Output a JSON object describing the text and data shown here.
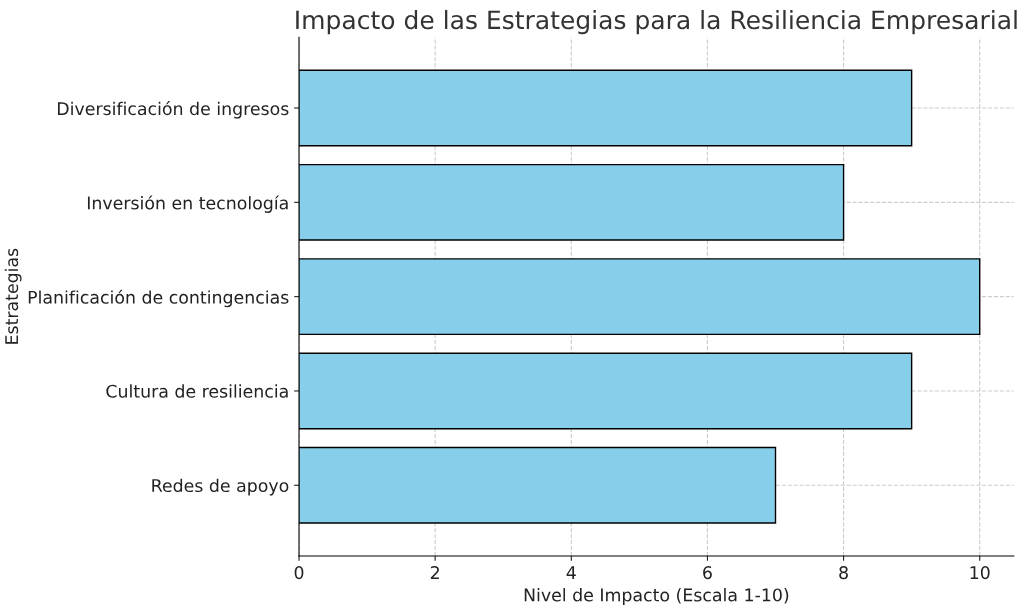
{
  "chart_data": {
    "type": "bar",
    "orientation": "horizontal",
    "title": "Impacto de las Estrategias para la Resiliencia Empresarial",
    "xlabel": "Nivel de Impacto (Escala 1-10)",
    "ylabel": "Estrategias",
    "categories": [
      "Diversificación de ingresos",
      "Inversión en tecnología",
      "Planificación de contingencias",
      "Cultura de resiliencia",
      "Redes de apoyo"
    ],
    "values": [
      9,
      8,
      10,
      9,
      7
    ],
    "color": "#87ceeb",
    "xlim": [
      0,
      10.5
    ],
    "xticks": [
      0,
      2,
      4,
      6,
      8,
      10
    ],
    "grid": true,
    "line_style": "dashed"
  }
}
